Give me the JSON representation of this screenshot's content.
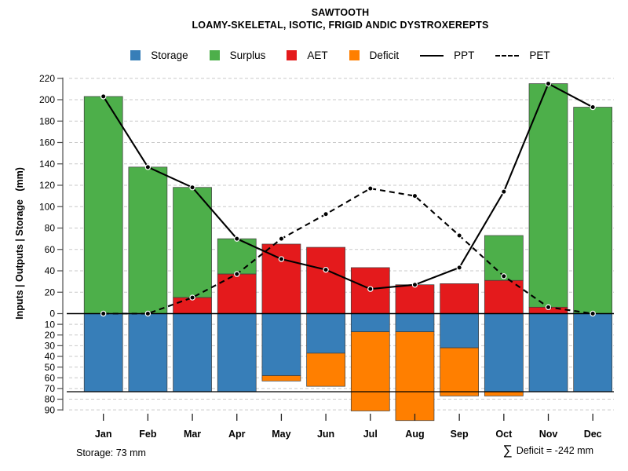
{
  "title": "SAWTOOTH",
  "subtitle": "LOAMY-SKELETAL, ISOTIC, FRIGID ANDIC DYSTROXEREPTS",
  "legend": {
    "items": [
      {
        "label": "Storage",
        "type": "swatch",
        "color": "#377EB8"
      },
      {
        "label": "Surplus",
        "type": "swatch",
        "color": "#4DAF4A"
      },
      {
        "label": "AET",
        "type": "swatch",
        "color": "#E41A1C"
      },
      {
        "label": "Deficit",
        "type": "swatch",
        "color": "#FF7F00"
      },
      {
        "label": "PPT",
        "type": "solid-line",
        "color": "#000000"
      },
      {
        "label": "PET",
        "type": "dashed-line",
        "color": "#000000"
      }
    ]
  },
  "axes": {
    "y_label": "Inputs | Outputs | Storage   (mm)"
  },
  "footer": {
    "storage_label": "Storage: 73 mm",
    "deficit_sigma": "∑",
    "deficit_label": "Deficit = -242 mm"
  },
  "colors": {
    "storage": "#377EB8",
    "surplus": "#4DAF4A",
    "aet": "#E41A1C",
    "deficit": "#FF7F00",
    "line": "#000000",
    "grid": "#C9C9C9",
    "axis": "#4D4D4D"
  },
  "chart_data": {
    "type": "bar",
    "subtype": "monthly-water-balance with PPT/PET line overlay",
    "title": "SAWTOOTH",
    "subtitle": "LOAMY-SKELETAL, ISOTIC, FRIGID ANDIC DYSTROXEREPTS",
    "xlabel": "",
    "ylabel": "Inputs | Outputs | Storage   (mm)",
    "legend_position": "top",
    "grid": true,
    "categories": [
      "Jan",
      "Feb",
      "Mar",
      "Apr",
      "May",
      "Jun",
      "Jul",
      "Aug",
      "Sep",
      "Oct",
      "Nov",
      "Dec"
    ],
    "series": [
      {
        "name": "PPT",
        "type": "line",
        "style": "solid",
        "color": "#000000",
        "values": [
          203,
          137,
          118,
          70,
          51,
          41,
          23,
          27,
          43,
          114,
          215,
          193
        ]
      },
      {
        "name": "PET",
        "type": "line",
        "style": "dashed",
        "color": "#000000",
        "values": [
          0,
          0,
          15,
          37,
          70,
          93,
          117,
          110,
          73,
          35,
          6,
          0
        ]
      },
      {
        "name": "AET",
        "type": "bar-above-zero",
        "color": "#E41A1C",
        "values": [
          0,
          0,
          15,
          37,
          65,
          62,
          43,
          27,
          28,
          31,
          6,
          0
        ]
      },
      {
        "name": "Surplus",
        "type": "bar-above-zero-stacked-on-AET",
        "color": "#4DAF4A",
        "values": [
          203,
          137,
          103,
          33,
          0,
          0,
          0,
          0,
          0,
          42,
          209,
          193
        ]
      },
      {
        "name": "Storage",
        "type": "bar-below-zero",
        "color": "#377EB8",
        "values": [
          73,
          73,
          73,
          73,
          58,
          37,
          17,
          17,
          32,
          73,
          73,
          73
        ]
      },
      {
        "name": "Deficit",
        "type": "bar-below-zero-stacked-on-Storage",
        "color": "#FF7F00",
        "values": [
          0,
          0,
          0,
          0,
          5,
          31,
          74,
          83,
          45,
          4,
          0,
          0
        ]
      }
    ],
    "y_axis": {
      "upper_ticks": [
        0,
        20,
        40,
        60,
        80,
        100,
        120,
        140,
        160,
        180,
        200,
        220
      ],
      "lower_ticks": [
        10,
        20,
        30,
        40,
        50,
        60,
        70,
        80,
        90
      ],
      "upper_range": [
        0,
        220
      ],
      "lower_range": [
        0,
        90
      ]
    },
    "reference_lines": {
      "zero_line": 0,
      "max_storage_line": -73
    },
    "annotations": {
      "total_storage_mm": 73,
      "total_deficit_mm": -242
    }
  }
}
